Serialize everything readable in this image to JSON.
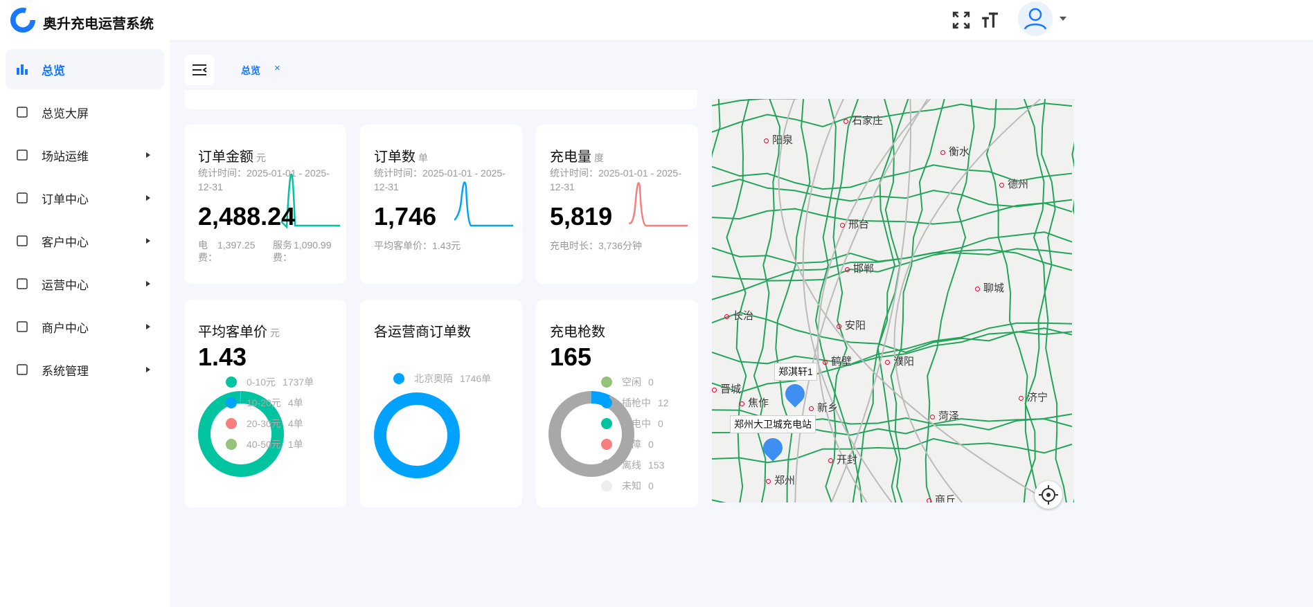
{
  "app": {
    "title": "奥升充电运营系统",
    "brand_color": "#1677ff"
  },
  "header": {
    "icons": [
      "fullscreen-icon",
      "font-size-icon",
      "user-avatar-icon",
      "chevron-down-icon"
    ]
  },
  "sidebar": {
    "items": [
      {
        "label": "总览",
        "icon": "bar-chart-icon",
        "active": true
      },
      {
        "label": "总览大屏",
        "icon": "monitor-icon"
      },
      {
        "label": "场站运维",
        "icon": "building-icon",
        "arrow": true
      },
      {
        "label": "订单中心",
        "icon": "order-icon",
        "arrow": true
      },
      {
        "label": "客户中心",
        "icon": "user-icon",
        "arrow": true
      },
      {
        "label": "运营中心",
        "icon": "operation-icon",
        "arrow": true
      },
      {
        "label": "商户中心",
        "icon": "building-icon",
        "arrow": true
      },
      {
        "label": "系统管理",
        "icon": "gear-icon",
        "arrow": true
      }
    ]
  },
  "tabs": [
    {
      "label": "总览",
      "close": "×"
    }
  ],
  "cards": {
    "amount": {
      "title": "订单金额",
      "unit": "元",
      "period": "统计时间：2025-01-01 - 2025-12-31",
      "value": "2,488.24",
      "foot1_label": "电费：",
      "foot1_value": "1,397.25",
      "foot2_label": "服务费：",
      "foot2_value": "1,090.99",
      "color": "#00c49f"
    },
    "orders": {
      "title": "订单数",
      "unit": "单",
      "period": "统计时间：2025-01-01 - 2025-12-31",
      "value": "1,746",
      "foot": "平均客单价：1.43元",
      "color": "#00a2ff"
    },
    "energy": {
      "title": "充电量",
      "unit": "度",
      "period": "统计时间：2025-01-01 - 2025-12-31",
      "value": "5,819",
      "foot": "充电时长：3,736分钟",
      "color": "#f77f7f"
    },
    "avg_price": {
      "title": "平均客单价",
      "unit": "元",
      "value": "1.43",
      "legend": [
        {
          "label": "0-10元",
          "count": "1737单",
          "color": "#00c49f",
          "value": 1737
        },
        {
          "label": "10-20元",
          "count": "4单",
          "color": "#00a2ff",
          "value": 4
        },
        {
          "label": "20-30元",
          "count": "4单",
          "color": "#f77f7f",
          "value": 4
        },
        {
          "label": "40-50元",
          "count": "1单",
          "color": "#95c37a",
          "value": 1
        }
      ]
    },
    "operators": {
      "title": "各运营商订单数",
      "legend": [
        {
          "label": "北京奥陌",
          "count": "1746单",
          "color": "#00a2ff",
          "value": 1746
        }
      ]
    },
    "guns": {
      "title": "充电枪数",
      "value": "165",
      "legend": [
        {
          "label": "空闲",
          "count": "0",
          "color": "#95c37a",
          "value": 0
        },
        {
          "label": "插枪中",
          "count": "12",
          "color": "#00a2ff",
          "value": 12
        },
        {
          "label": "充电中",
          "count": "0",
          "color": "#00c49f",
          "value": 0
        },
        {
          "label": "故障",
          "count": "0",
          "color": "#f77f7f",
          "value": 0
        },
        {
          "label": "离线",
          "count": "153",
          "color": "#a8a8a8",
          "value": 153
        },
        {
          "label": "未知",
          "count": "0",
          "color": "#eeeeee",
          "value": 0
        }
      ]
    }
  },
  "map": {
    "cities": [
      "石家庄",
      "阳泉",
      "衡水",
      "德州",
      "邢台",
      "邯郸",
      "聊城",
      "长治",
      "安阳",
      "鹤壁",
      "濮阳",
      "晋城",
      "新乡",
      "焦作",
      "菏泽",
      "济宁",
      "开封",
      "郑州",
      "商丘"
    ],
    "stations": [
      "郑淇轩1",
      "郑州大卫城充电站"
    ]
  }
}
